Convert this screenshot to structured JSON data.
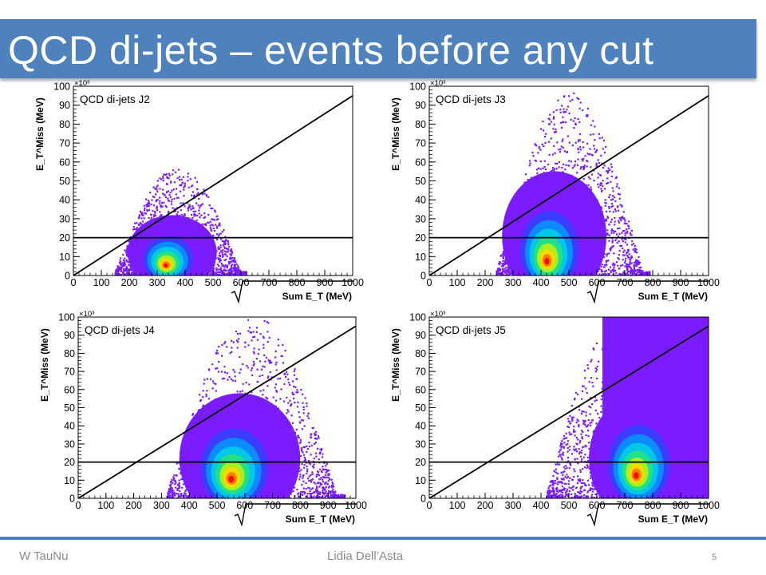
{
  "slide": {
    "title": "QCD di-jets – events before any cut",
    "footer_left": "W TauNu",
    "footer_center": "Lidia Dell’Asta",
    "page_number": "5"
  },
  "colors": {
    "title_bar": "#4f81bd",
    "footer_rule": "#4f81bd",
    "scatter_fill": "#7a1cff",
    "cut_line": "#000000"
  },
  "chart_data": [
    {
      "type": "heatmap",
      "title": "QCD di-jets J2",
      "xlabel": "Sum E_T (MeV)",
      "ylabel": "E_T^Miss (MeV)",
      "y_multiplier": "×10³",
      "xlim": [
        0,
        1000
      ],
      "ylim": [
        0,
        100
      ],
      "x_ticks": [
        0,
        100,
        200,
        300,
        400,
        500,
        600,
        700,
        800,
        900,
        1000
      ],
      "y_ticks": [
        0,
        10,
        20,
        30,
        40,
        50,
        60,
        70,
        80,
        90,
        100
      ],
      "cut_lines": [
        {
          "kind": "horizontal",
          "y": 20
        },
        {
          "kind": "diagonal",
          "x": [
            0,
            1000
          ],
          "y": [
            0,
            95
          ]
        }
      ],
      "distribution": {
        "x_range": [
          150,
          620
        ],
        "y_max": 55,
        "peak_x": 330,
        "peak_y": 5
      }
    },
    {
      "type": "heatmap",
      "title": "QCD di-jets J3",
      "xlabel": "Sum E_T (MeV)",
      "ylabel": "E_T^Miss (MeV)",
      "y_multiplier": "×10³",
      "xlim": [
        0,
        1000
      ],
      "ylim": [
        0,
        100
      ],
      "x_ticks": [
        0,
        100,
        200,
        300,
        400,
        500,
        600,
        700,
        800,
        900,
        1000
      ],
      "y_ticks": [
        0,
        10,
        20,
        30,
        40,
        50,
        60,
        70,
        80,
        90,
        100
      ],
      "cut_lines": [
        {
          "kind": "horizontal",
          "y": 20
        },
        {
          "kind": "diagonal",
          "x": [
            0,
            1000
          ],
          "y": [
            0,
            95
          ]
        }
      ],
      "distribution": {
        "x_range": [
          240,
          790
        ],
        "y_max": 95,
        "peak_x": 420,
        "peak_y": 7
      }
    },
    {
      "type": "heatmap",
      "title": "QCD di-jets J4",
      "xlabel": "Sum E_T (MeV)",
      "ylabel": "E_T^Miss (MeV)",
      "y_multiplier": "×10³",
      "xlim": [
        0,
        1000
      ],
      "ylim": [
        0,
        100
      ],
      "x_ticks": [
        0,
        100,
        200,
        300,
        400,
        500,
        600,
        700,
        800,
        900,
        1000
      ],
      "y_ticks": [
        0,
        10,
        20,
        30,
        40,
        50,
        60,
        70,
        80,
        90,
        100
      ],
      "cut_lines": [
        {
          "kind": "horizontal",
          "y": 20
        },
        {
          "kind": "diagonal",
          "x": [
            0,
            1000
          ],
          "y": [
            0,
            95
          ]
        }
      ],
      "distribution": {
        "x_range": [
          320,
          960
        ],
        "y_max": 100,
        "peak_x": 550,
        "peak_y": 10
      }
    },
    {
      "type": "heatmap",
      "title": "QCD di-jets J5",
      "xlabel": "Sum E_T (MeV)",
      "ylabel": "E_T^Miss (MeV)",
      "y_multiplier": "×10³",
      "xlim": [
        0,
        1000
      ],
      "ylim": [
        0,
        100
      ],
      "x_ticks": [
        0,
        100,
        200,
        300,
        400,
        500,
        600,
        700,
        800,
        900,
        1000
      ],
      "y_ticks": [
        0,
        10,
        20,
        30,
        40,
        50,
        60,
        70,
        80,
        90,
        100
      ],
      "cut_lines": [
        {
          "kind": "horizontal",
          "y": 20
        },
        {
          "kind": "diagonal",
          "x": [
            0,
            1000
          ],
          "y": [
            0,
            95
          ]
        }
      ],
      "distribution": {
        "x_range": [
          420,
          1000
        ],
        "y_max": 100,
        "peak_x": 740,
        "peak_y": 12
      }
    }
  ]
}
